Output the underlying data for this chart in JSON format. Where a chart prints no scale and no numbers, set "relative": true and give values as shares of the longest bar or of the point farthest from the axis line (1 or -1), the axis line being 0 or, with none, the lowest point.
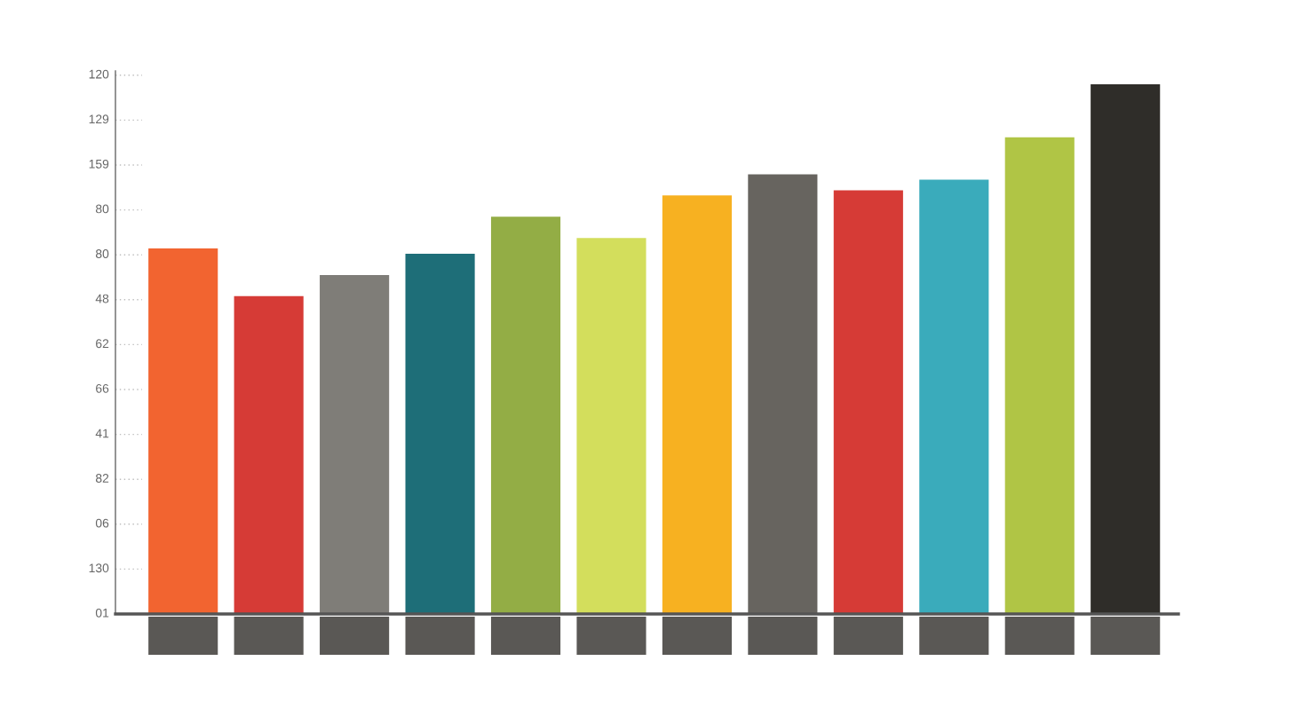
{
  "chart_data": {
    "type": "bar",
    "categories": [
      null,
      null,
      null,
      null,
      null,
      null,
      null,
      null,
      null,
      null,
      null,
      null
    ],
    "values": [
      0.69,
      0.6,
      0.64,
      0.68,
      0.75,
      0.71,
      0.79,
      0.83,
      0.8,
      0.82,
      0.9,
      1
    ],
    "colors": [
      "#f26430",
      "#d63b36",
      "#7f7d78",
      "#1e6e78",
      "#93ad45",
      "#d3de5c",
      "#f7b121",
      "#67645f",
      "#d63b36",
      "#3aabbb",
      "#b0c545",
      "#2f2d29"
    ],
    "relative": true,
    "annotations": [
      "120",
      "129",
      "159",
      "80",
      "80",
      "48",
      "62",
      "66",
      "41",
      "82",
      "06",
      "130",
      "01"
    ]
  }
}
